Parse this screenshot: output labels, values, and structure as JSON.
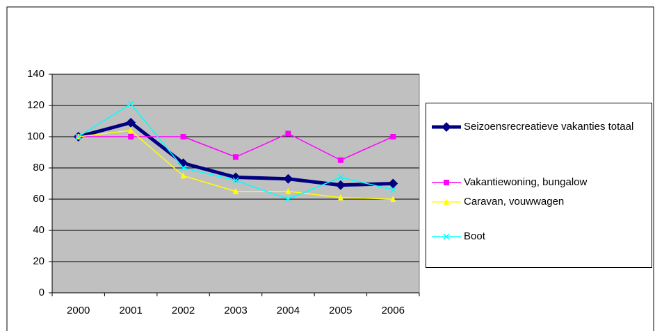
{
  "chart_data": {
    "type": "line",
    "categories": [
      "2000",
      "2001",
      "2002",
      "2003",
      "2004",
      "2005",
      "2006"
    ],
    "series": [
      {
        "name": "Seizoensrecreatieve vakanties totaal",
        "color": "#000080",
        "marker": "diamond",
        "values": [
          100,
          109,
          83,
          74,
          73,
          69,
          70
        ]
      },
      {
        "name": "Vakantiewoning, bungalow",
        "color": "#ff00ff",
        "marker": "square",
        "values": [
          100,
          100,
          100,
          87,
          102,
          85,
          100
        ]
      },
      {
        "name": "Caravan, vouwwagen",
        "color": "#ffff00",
        "marker": "triangle",
        "values": [
          100,
          104,
          75,
          65,
          65,
          61,
          60
        ]
      },
      {
        "name": "Boot",
        "color": "#00ffff",
        "marker": "x",
        "values": [
          100,
          121,
          80,
          72,
          60,
          74,
          66
        ]
      }
    ],
    "ylim": [
      0,
      140
    ],
    "yticks": [
      0,
      20,
      40,
      60,
      80,
      100,
      120,
      140
    ],
    "grid": true,
    "legend": "right"
  }
}
